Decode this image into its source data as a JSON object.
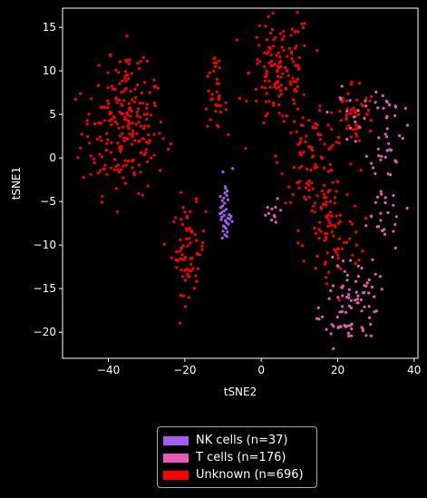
{
  "chart_data": {
    "type": "scatter",
    "xlabel": "tSNE2",
    "ylabel": "tSNE1",
    "xlim": [
      -52,
      41
    ],
    "ylim": [
      -23,
      17.2
    ],
    "xticks": [
      -40,
      -20,
      0,
      20,
      40
    ],
    "yticks": [
      -20,
      -15,
      -10,
      -5,
      0,
      5,
      10,
      15
    ],
    "grid": false,
    "legend_position": "bottom-center",
    "background": "#000000",
    "series": [
      {
        "name": "NK cells (n=37)",
        "color": "#a55cf5",
        "count": 37,
        "points": [
          [
            -10,
            -1.6
          ],
          [
            -7.5,
            -1.2
          ],
          [
            -9.5,
            -4.0
          ],
          [
            -9.0,
            -4.3
          ],
          [
            -9.8,
            -4.6
          ],
          [
            -10.2,
            -4.9
          ],
          [
            -9.6,
            -5.2
          ],
          [
            -10.1,
            -5.5
          ],
          [
            -8.9,
            -3.8
          ],
          [
            -9.3,
            -3.5
          ],
          [
            -10.4,
            -6.3
          ],
          [
            -9.7,
            -6.6
          ],
          [
            -8.8,
            -6.9
          ],
          [
            -9.4,
            -7.2
          ],
          [
            -10.3,
            -6.8
          ],
          [
            -9.1,
            -7.4
          ],
          [
            -8.2,
            -7.0
          ],
          [
            -7.6,
            -7.3
          ],
          [
            -9.9,
            -7.8
          ],
          [
            -9.2,
            -8.1
          ],
          [
            -10.0,
            -8.4
          ],
          [
            -9.5,
            -8.8
          ],
          [
            -9.0,
            -9.0
          ],
          [
            -8.6,
            -7.6
          ],
          [
            -10.5,
            -7.1
          ],
          [
            -8.4,
            -6.5
          ],
          [
            -9.8,
            -6.1
          ],
          [
            -10.6,
            -5.7
          ],
          [
            -9.2,
            -5.9
          ],
          [
            -8.7,
            -4.8
          ],
          [
            -10.7,
            -4.4
          ],
          [
            -9.4,
            -3.3
          ],
          [
            -8.9,
            -8.5
          ],
          [
            -10.2,
            -9.2
          ],
          [
            -7.9,
            -6.7
          ],
          [
            -9.6,
            -7.9
          ],
          [
            -10.8,
            -6.4
          ]
        ]
      },
      {
        "name": "T cells (n=176)",
        "color": "#e75bb5",
        "count": 176,
        "clusters": [
          {
            "cx": 33,
            "cy": 3.5,
            "sx": 2.2,
            "sy": 2.8,
            "n": 40
          },
          {
            "cx": 31,
            "cy": -6.5,
            "sx": 3.5,
            "sy": 2.0,
            "n": 25
          },
          {
            "cx": 24,
            "cy": -16,
            "sx": 3.2,
            "sy": 2.4,
            "n": 60
          },
          {
            "cx": 20,
            "cy": -19,
            "sx": 2.5,
            "sy": 1.3,
            "n": 25
          },
          {
            "cx": 3,
            "cy": -6.6,
            "sx": 1.5,
            "sy": 0.9,
            "n": 11
          },
          {
            "cx": 24,
            "cy": 5,
            "sx": 3.0,
            "sy": 2.0,
            "n": 15
          }
        ]
      },
      {
        "name": "Unknown (n=696)",
        "color": "#ff0000",
        "count": 696,
        "clusters": [
          {
            "cx": -36,
            "cy": 3,
            "sx": 5.5,
            "sy": 3.5,
            "n": 200
          },
          {
            "cx": -35,
            "cy": 9.5,
            "sx": 2.5,
            "sy": 2,
            "n": 30
          },
          {
            "cx": -19,
            "cy": -10.5,
            "sx": 2.2,
            "sy": 2.5,
            "n": 70
          },
          {
            "cx": -12,
            "cy": 6,
            "sx": 1.5,
            "sy": 1.3,
            "n": 25
          },
          {
            "cx": -12,
            "cy": 10.5,
            "sx": 1,
            "sy": 0.6,
            "n": 10
          },
          {
            "cx": 5,
            "cy": 10,
            "sx": 4,
            "sy": 3.5,
            "n": 140
          },
          {
            "cx": 13,
            "cy": 0,
            "sx": 4,
            "sy": 2.5,
            "n": 80
          },
          {
            "cx": 18,
            "cy": -8.5,
            "sx": 4,
            "sy": 3.5,
            "n": 90
          },
          {
            "cx": 24,
            "cy": 5,
            "sx": 3,
            "sy": 2,
            "n": 51
          }
        ]
      }
    ]
  },
  "legend": {
    "items": [
      {
        "label": "NK cells (n=37)",
        "color": "#a55cf5"
      },
      {
        "label": "T cells (n=176)",
        "color": "#e75bb5"
      },
      {
        "label": "Unknown (n=696)",
        "color": "#ff0000"
      }
    ]
  }
}
